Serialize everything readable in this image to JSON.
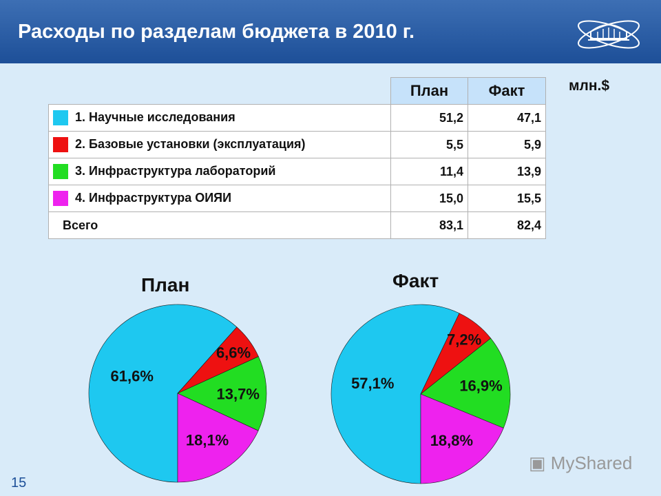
{
  "header": {
    "title": "Расходы по разделам бюджета в 2010 г."
  },
  "table": {
    "unit": "млн.$",
    "columns": [
      "План",
      "Факт"
    ],
    "rows": [
      {
        "label": "1. Научные исследования",
        "plan": "51,2",
        "fact": "47,1",
        "color": "#1ec8f0"
      },
      {
        "label": "2. Базовые установки  (эксплуатация)",
        "plan": "5,5",
        "fact": "5,9",
        "color": "#ee1111"
      },
      {
        "label": "3. Инфраструктура лабораторий",
        "plan": "11,4",
        "fact": "13,9",
        "color": "#22dd22"
      },
      {
        "label": "4. Инфраструктура ОИЯИ",
        "plan": "15,0",
        "fact": "15,5",
        "color": "#ee22ee"
      }
    ],
    "total": {
      "label": "Всего",
      "plan": "83,1",
      "fact": "82,4"
    }
  },
  "chart_data": [
    {
      "type": "pie",
      "title": "План",
      "categories": [
        "1. Научные исследования",
        "2. Базовые установки  (эксплуатация)",
        "3. Инфраструктура лабораторий",
        "4. Инфраструктура ОИЯИ"
      ],
      "values": [
        61.6,
        6.6,
        13.7,
        18.1
      ],
      "labels": [
        "61,6%",
        "6,6%",
        "13,7%",
        "18,1%"
      ],
      "colors": [
        "#1ec8f0",
        "#ee1111",
        "#22dd22",
        "#ee22ee"
      ]
    },
    {
      "type": "pie",
      "title": "Факт",
      "categories": [
        "1. Научные исследования",
        "2. Базовые установки  (эксплуатация)",
        "3. Инфраструктура лабораторий",
        "4. Инфраструктура ОИЯИ"
      ],
      "values": [
        57.1,
        7.2,
        16.9,
        18.8
      ],
      "labels": [
        "57,1%",
        "7,2%",
        "16,9%",
        "18,8%"
      ],
      "colors": [
        "#1ec8f0",
        "#ee1111",
        "#22dd22",
        "#ee22ee"
      ]
    }
  ],
  "footer": {
    "page": "15",
    "watermark": "MyShared"
  }
}
